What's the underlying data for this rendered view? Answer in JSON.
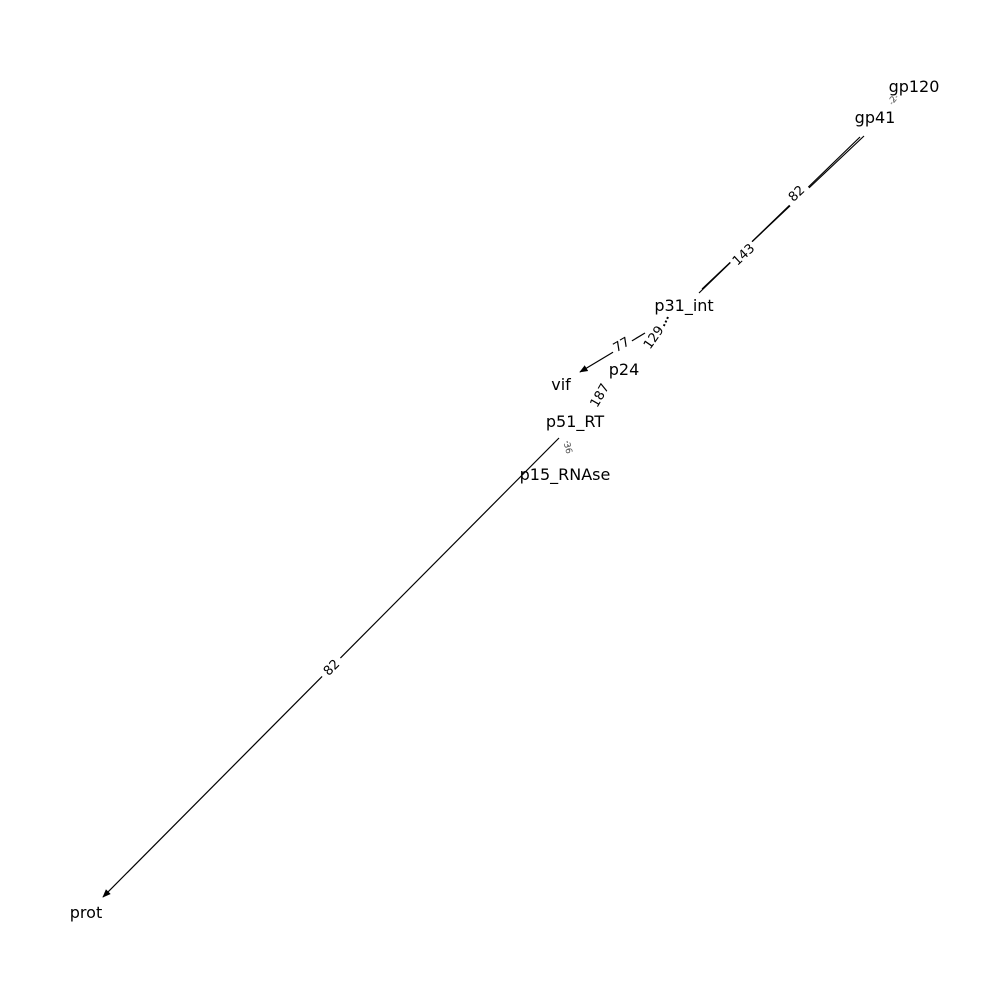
{
  "nodes": {
    "gp120": "gp120",
    "gp41": "gp41",
    "p31_int": "p31_int",
    "vif": "vif",
    "p24": "p24",
    "p51_RT": "p51_RT",
    "p15_RNAse": "p15_RNAse",
    "prot": "prot"
  },
  "edges": {
    "gp41_p31_a": "82",
    "gp41_p31_b": "143",
    "p31_vif": "77",
    "p31_p24": "129",
    "p24_p51": "187",
    "p51_p15": "36",
    "p51_prot": "82",
    "gp120_gp41": "2"
  }
}
